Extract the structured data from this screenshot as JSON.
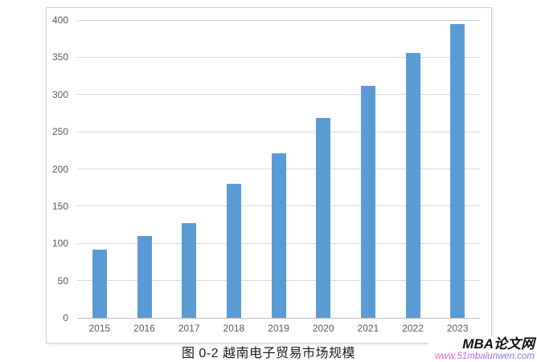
{
  "chart_data": {
    "type": "bar",
    "title": "图 0-2 越南电子贸易市场规模",
    "categories": [
      "2015",
      "2016",
      "2017",
      "2018",
      "2019",
      "2020",
      "2021",
      "2022",
      "2023"
    ],
    "values": [
      92,
      110,
      127,
      180,
      221,
      268,
      312,
      356,
      395
    ],
    "xlabel": "",
    "ylabel": "",
    "ylim": [
      0,
      400
    ],
    "ytick_step": 50,
    "yticks": [
      0,
      50,
      100,
      150,
      200,
      250,
      300,
      350,
      400
    ],
    "grid": "horizontal",
    "legend": "none",
    "bar_color": "#5B9BD5",
    "gridline_color": "#D9D9D9",
    "axis_text_color": "#595959"
  },
  "watermark": {
    "site_name": "MBA论文网",
    "url": "www.51mbalunwen.com"
  }
}
